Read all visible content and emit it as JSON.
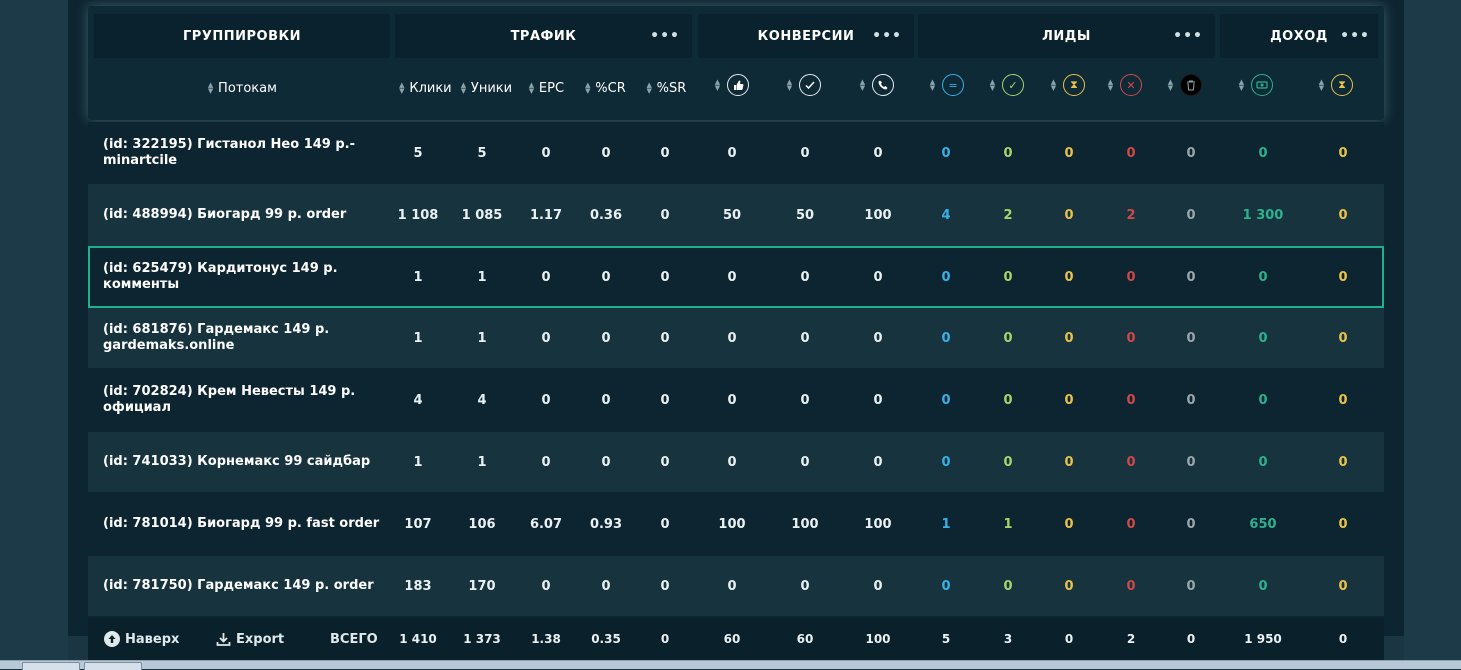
{
  "header": {
    "groups": [
      {
        "id": "groupings",
        "label": "ГРУППИРОВКИ"
      },
      {
        "id": "traffic",
        "label": "ТРАФИК"
      },
      {
        "id": "conversions",
        "label": "КОНВЕРСИИ"
      },
      {
        "id": "leads",
        "label": "ЛИДЫ"
      },
      {
        "id": "income",
        "label": "ДОХОД"
      }
    ],
    "menu_dots": "•••",
    "grouping_column": "Потокам",
    "traffic_columns": [
      "Клики",
      "Уники",
      "EPC",
      "%CR",
      "%SR"
    ],
    "conversion_icons": [
      "thumbs-up-percent-icon",
      "check-percent-icon",
      "phone-percent-icon"
    ],
    "lead_icons": [
      {
        "name": "equals-icon",
        "color": "#3ab0e8"
      },
      {
        "name": "check-icon",
        "color": "#a8d46a"
      },
      {
        "name": "hourglass-icon",
        "color": "#e8c24a"
      },
      {
        "name": "cross-icon",
        "color": "#d04848"
      },
      {
        "name": "trash-icon",
        "color": "#9aa8ad"
      }
    ],
    "income_icons": [
      {
        "name": "money-icon",
        "color": "#2fb08e"
      },
      {
        "name": "hourglass-icon",
        "color": "#e8c24a"
      }
    ]
  },
  "colors": {
    "leads": [
      "#3ab0e8",
      "#a8d46a",
      "#e8c24a",
      "#d04848",
      "#9aa8ad"
    ],
    "income": [
      "#2fb08e",
      "#e8c24a"
    ],
    "selected_outline": "#1fb08c"
  },
  "rows": [
    {
      "name": "(id: 322195) Гистанол Нео 149 р.-minartcile",
      "traffic": [
        "5",
        "5",
        "0",
        "0",
        "0"
      ],
      "conv": [
        "0",
        "0",
        "0"
      ],
      "leads": [
        "0",
        "0",
        "0",
        "0",
        "0"
      ],
      "income": [
        "0",
        "0"
      ]
    },
    {
      "name": "(id: 488994) Биогард 99 р. order",
      "traffic": [
        "1 108",
        "1 085",
        "1.17",
        "0.36",
        "0"
      ],
      "conv": [
        "50",
        "50",
        "100"
      ],
      "leads": [
        "4",
        "2",
        "0",
        "2",
        "0"
      ],
      "income": [
        "1 300",
        "0"
      ]
    },
    {
      "name": "(id: 625479) Кардитонус 149 р. комменты",
      "traffic": [
        "1",
        "1",
        "0",
        "0",
        "0"
      ],
      "conv": [
        "0",
        "0",
        "0"
      ],
      "leads": [
        "0",
        "0",
        "0",
        "0",
        "0"
      ],
      "income": [
        "0",
        "0"
      ],
      "selected": true
    },
    {
      "name": "(id: 681876) Гардемакс 149 р. gardemaks.online",
      "traffic": [
        "1",
        "1",
        "0",
        "0",
        "0"
      ],
      "conv": [
        "0",
        "0",
        "0"
      ],
      "leads": [
        "0",
        "0",
        "0",
        "0",
        "0"
      ],
      "income": [
        "0",
        "0"
      ]
    },
    {
      "name": "(id: 702824) Крем Невесты 149 р. официал",
      "traffic": [
        "4",
        "4",
        "0",
        "0",
        "0"
      ],
      "conv": [
        "0",
        "0",
        "0"
      ],
      "leads": [
        "0",
        "0",
        "0",
        "0",
        "0"
      ],
      "income": [
        "0",
        "0"
      ]
    },
    {
      "name": "(id: 741033) Корнемакс 99 сайдбар",
      "traffic": [
        "1",
        "1",
        "0",
        "0",
        "0"
      ],
      "conv": [
        "0",
        "0",
        "0"
      ],
      "leads": [
        "0",
        "0",
        "0",
        "0",
        "0"
      ],
      "income": [
        "0",
        "0"
      ]
    },
    {
      "name": "(id: 781014) Биогард 99 р. fast order",
      "traffic": [
        "107",
        "106",
        "6.07",
        "0.93",
        "0"
      ],
      "conv": [
        "100",
        "100",
        "100"
      ],
      "leads": [
        "1",
        "1",
        "0",
        "0",
        "0"
      ],
      "income": [
        "650",
        "0"
      ]
    },
    {
      "name": "(id: 781750) Гардемакс 149 р. order",
      "traffic": [
        "183",
        "170",
        "0",
        "0",
        "0"
      ],
      "conv": [
        "0",
        "0",
        "0"
      ],
      "leads": [
        "0",
        "0",
        "0",
        "0",
        "0"
      ],
      "income": [
        "0",
        "0"
      ]
    }
  ],
  "footer": {
    "up_label": "Наверх",
    "export_label": "Export",
    "total_label": "ВСЕГО",
    "traffic": [
      "1 410",
      "1 373",
      "1.38",
      "0.35",
      "0"
    ],
    "conv": [
      "60",
      "60",
      "100"
    ],
    "leads": [
      "5",
      "3",
      "0",
      "2",
      "0"
    ],
    "income": [
      "1 950",
      "0"
    ]
  }
}
